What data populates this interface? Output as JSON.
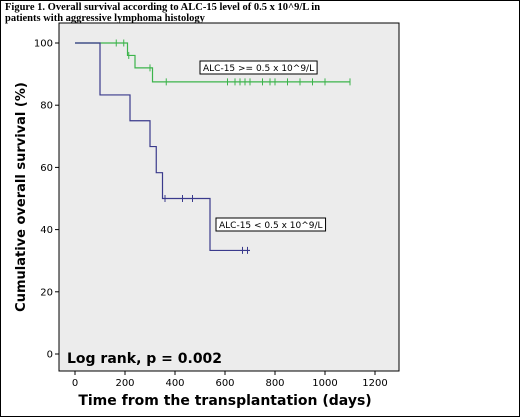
{
  "figure": {
    "caption_line1": "Figure 1. Overall survival according to ALC-15 level of 0.5 x 10^9/L in",
    "caption_line2": "patients with aggressive lymphoma histology"
  },
  "chart_data": {
    "type": "line",
    "step": true,
    "xlabel": "Time from the transplantation (days)",
    "ylabel": "Cumulative overall survival (%)",
    "xlim": [
      0,
      1200
    ],
    "ylim": [
      0,
      100
    ],
    "xticks": [
      0,
      200,
      400,
      600,
      800,
      1000,
      1200
    ],
    "yticks": [
      0,
      20,
      40,
      60,
      80,
      100
    ],
    "grid": false,
    "background": "#ececec",
    "annotation": "Log rank, p = 0.002",
    "series": [
      {
        "name": "ALC-15 >= 0.5 x 10^9/L",
        "color": "#3cb44b",
        "x": [
          0,
          190,
          210,
          240,
          300,
          310,
          1100
        ],
        "y": [
          100,
          100,
          96,
          92,
          92,
          87.5,
          87.5
        ],
        "censored_x": [
          165,
          195,
          215,
          300,
          365,
          610,
          640,
          660,
          680,
          700,
          750,
          780,
          800,
          850,
          900,
          950,
          1000,
          1100
        ],
        "label_anchor": [
          1,
          92
        ]
      },
      {
        "name": "ALC-15 < 0.5 x 10^9/L",
        "color": "#3a3a8c",
        "x": [
          0,
          85,
          100,
          190,
          220,
          300,
          325,
          350,
          540,
          700
        ],
        "y": [
          100,
          100,
          83.3,
          83.3,
          75,
          66.7,
          58.3,
          50,
          33.3,
          33.3
        ],
        "censored_x": [
          360,
          430,
          470,
          670,
          690
        ],
        "label_anchor": [
          1,
          42
        ]
      }
    ]
  }
}
